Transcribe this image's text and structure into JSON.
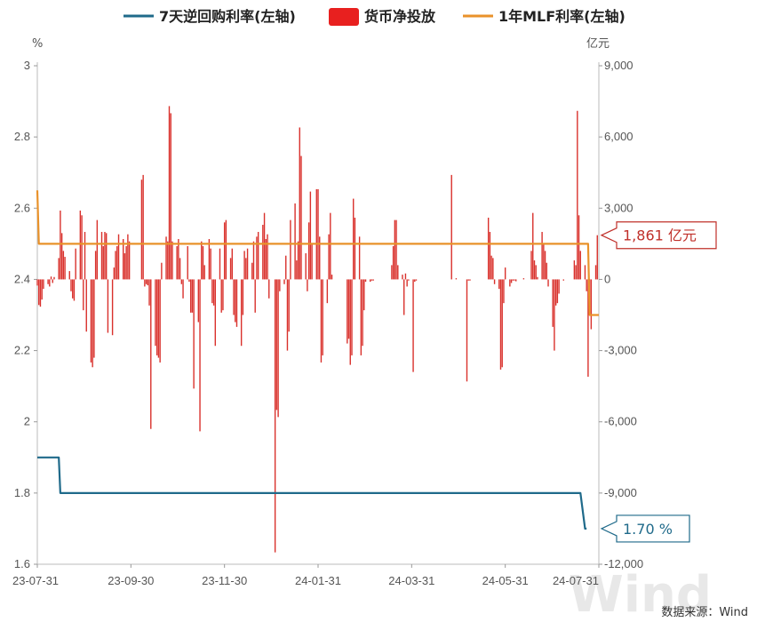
{
  "chart_data": {
    "type": "bar",
    "legend": {
      "placement": "top",
      "items": [
        {
          "label": "7天逆回购利率(左轴)",
          "color": "#1f6a8a",
          "symbol": "line"
        },
        {
          "label": "货币净投放",
          "color": "#e8201f",
          "symbol": "box"
        },
        {
          "label": "1年MLF利率(左轴)",
          "color": "#e9922a",
          "symbol": "line"
        }
      ]
    },
    "left_axis": {
      "unit": "%",
      "min": 1.6,
      "max": 3.0,
      "ticks": [
        "3",
        "2.8",
        "2.6",
        "2.4",
        "2.2",
        "2",
        "1.8",
        "1.6"
      ]
    },
    "right_axis": {
      "unit": "亿元",
      "min": -12000,
      "max": 9000,
      "ticks": [
        "9,000",
        "6,000",
        "3,000",
        "0",
        "-3,000",
        "-6,000",
        "-9,000",
        "-12,000"
      ]
    },
    "x_axis": {
      "min": "2023-07-31",
      "max": "2024-07-31",
      "ticks": [
        "23-07-31",
        "23-09-30",
        "23-11-30",
        "24-01-31",
        "24-03-31",
        "24-05-31",
        "24-07-31"
      ]
    },
    "series": [
      {
        "name": "7天逆回购利率(左轴)",
        "axis": "left",
        "color": "#1f6a8a",
        "points": [
          [
            "2023-07-31",
            1.9
          ],
          [
            "2023-08-14",
            1.9
          ],
          [
            "2023-08-15",
            1.8
          ],
          [
            "2024-07-19",
            1.8
          ],
          [
            "2024-07-22",
            1.7
          ],
          [
            "2024-07-23",
            1.7
          ]
        ]
      },
      {
        "name": "1年MLF利率(左轴)",
        "axis": "left",
        "color": "#e9922a",
        "points": [
          [
            "2023-07-31",
            2.65
          ],
          [
            "2023-08-01",
            2.5
          ],
          [
            "2024-07-24",
            2.5
          ],
          [
            "2024-07-25",
            2.3
          ],
          [
            "2024-07-31",
            2.3
          ]
        ]
      },
      {
        "name": "货币净投放",
        "axis": "right",
        "color": "#d9312c",
        "bars": [
          [
            "2023-07-31",
            -260
          ],
          [
            "2023-08-01",
            -1080
          ],
          [
            "2023-08-02",
            -1150
          ],
          [
            "2023-08-03",
            -850
          ],
          [
            "2023-08-04",
            -400
          ],
          [
            "2023-08-07",
            -200
          ],
          [
            "2023-08-08",
            -300
          ],
          [
            "2023-08-09",
            120
          ],
          [
            "2023-08-10",
            -150
          ],
          [
            "2023-08-11",
            100
          ],
          [
            "2023-08-14",
            900
          ],
          [
            "2023-08-15",
            2900
          ],
          [
            "2023-08-16",
            1950
          ],
          [
            "2023-08-17",
            1200
          ],
          [
            "2023-08-18",
            950
          ],
          [
            "2023-08-21",
            350
          ],
          [
            "2023-08-22",
            -500
          ],
          [
            "2023-08-23",
            -800
          ],
          [
            "2023-08-24",
            -900
          ],
          [
            "2023-08-25",
            1300
          ],
          [
            "2023-08-28",
            2900
          ],
          [
            "2023-08-29",
            2700
          ],
          [
            "2023-08-30",
            -1300
          ],
          [
            "2023-08-31",
            2000
          ],
          [
            "2023-09-01",
            -2200
          ],
          [
            "2023-09-04",
            -3500
          ],
          [
            "2023-09-05",
            -3700
          ],
          [
            "2023-09-06",
            -3300
          ],
          [
            "2023-09-07",
            1200
          ],
          [
            "2023-09-08",
            2500
          ],
          [
            "2023-09-11",
            2000
          ],
          [
            "2023-09-12",
            1400
          ],
          [
            "2023-09-13",
            2000
          ],
          [
            "2023-09-14",
            1950
          ],
          [
            "2023-09-15",
            -2250
          ],
          [
            "2023-09-18",
            -2350
          ],
          [
            "2023-09-19",
            500
          ],
          [
            "2023-09-20",
            1200
          ],
          [
            "2023-09-21",
            1400
          ],
          [
            "2023-09-22",
            1900
          ],
          [
            "2023-09-25",
            1700
          ],
          [
            "2023-09-26",
            1100
          ],
          [
            "2023-09-27",
            1400
          ],
          [
            "2023-09-28",
            1900
          ],
          [
            "2023-09-29",
            1600
          ],
          [
            "2023-10-07",
            4200
          ],
          [
            "2023-10-08",
            4400
          ],
          [
            "2023-10-09",
            -300
          ],
          [
            "2023-10-10",
            -200
          ],
          [
            "2023-10-11",
            -250
          ],
          [
            "2023-10-12",
            -1100
          ],
          [
            "2023-10-13",
            -6300
          ],
          [
            "2023-10-16",
            -2800
          ],
          [
            "2023-10-17",
            -3200
          ],
          [
            "2023-10-18",
            -3300
          ],
          [
            "2023-10-19",
            -3500
          ],
          [
            "2023-10-20",
            700
          ],
          [
            "2023-10-23",
            1800
          ],
          [
            "2023-10-24",
            1600
          ],
          [
            "2023-10-25",
            7300
          ],
          [
            "2023-10-26",
            7000
          ],
          [
            "2023-10-27",
            1600
          ],
          [
            "2023-10-30",
            1400
          ],
          [
            "2023-10-31",
            1700
          ],
          [
            "2023-11-01",
            900
          ],
          [
            "2023-11-02",
            -200
          ],
          [
            "2023-11-03",
            -800
          ],
          [
            "2023-11-06",
            1400
          ],
          [
            "2023-11-07",
            -100
          ],
          [
            "2023-11-08",
            -1400
          ],
          [
            "2023-11-09",
            -1400
          ],
          [
            "2023-11-10",
            -4600
          ],
          [
            "2023-11-13",
            -1800
          ],
          [
            "2023-11-14",
            -6400
          ],
          [
            "2023-11-15",
            1600
          ],
          [
            "2023-11-16",
            1400
          ],
          [
            "2023-11-17",
            600
          ],
          [
            "2023-11-20",
            1700
          ],
          [
            "2023-11-21",
            1300
          ],
          [
            "2023-11-22",
            -1000
          ],
          [
            "2023-11-23",
            -1100
          ],
          [
            "2023-11-24",
            -2800
          ],
          [
            "2023-11-27",
            1300
          ],
          [
            "2023-11-28",
            -1400
          ],
          [
            "2023-11-29",
            -1300
          ],
          [
            "2023-11-30",
            2400
          ],
          [
            "2023-12-01",
            2500
          ],
          [
            "2023-12-04",
            900
          ],
          [
            "2023-12-05",
            1300
          ],
          [
            "2023-12-06",
            -1500
          ],
          [
            "2023-12-07",
            -1800
          ],
          [
            "2023-12-08",
            -2000
          ],
          [
            "2023-12-11",
            -2800
          ],
          [
            "2023-12-12",
            -1500
          ],
          [
            "2023-12-13",
            1200
          ],
          [
            "2023-12-14",
            900
          ],
          [
            "2023-12-15",
            1300
          ],
          [
            "2023-12-18",
            700
          ],
          [
            "2023-12-19",
            1600
          ],
          [
            "2023-12-20",
            -1400
          ],
          [
            "2023-12-21",
            1800
          ],
          [
            "2023-12-22",
            2000
          ],
          [
            "2023-12-25",
            2300
          ],
          [
            "2023-12-26",
            2800
          ],
          [
            "2023-12-27",
            1700
          ],
          [
            "2023-12-28",
            1900
          ],
          [
            "2023-12-29",
            -800
          ],
          [
            "2024-01-02",
            -11500
          ],
          [
            "2024-01-03",
            -5500
          ],
          [
            "2024-01-04",
            -5800
          ],
          [
            "2024-01-05",
            -500
          ],
          [
            "2024-01-08",
            -200
          ],
          [
            "2024-01-09",
            1000
          ],
          [
            "2024-01-10",
            -3000
          ],
          [
            "2024-01-11",
            -2200
          ],
          [
            "2024-01-12",
            2500
          ],
          [
            "2024-01-15",
            3200
          ],
          [
            "2024-01-16",
            800
          ],
          [
            "2024-01-17",
            1600
          ],
          [
            "2024-01-18",
            6400
          ],
          [
            "2024-01-19",
            5200
          ],
          [
            "2024-01-22",
            1100
          ],
          [
            "2024-01-23",
            -500
          ],
          [
            "2024-01-24",
            2400
          ],
          [
            "2024-01-25",
            3700
          ],
          [
            "2024-01-26",
            1500
          ],
          [
            "2024-01-29",
            3800
          ],
          [
            "2024-01-30",
            3800
          ],
          [
            "2024-01-31",
            1800
          ],
          [
            "2024-02-01",
            -3500
          ],
          [
            "2024-02-02",
            -3200
          ],
          [
            "2024-02-05",
            -1000
          ],
          [
            "2024-02-06",
            1900
          ],
          [
            "2024-02-07",
            2800
          ],
          [
            "2024-02-08",
            200
          ],
          [
            "2024-02-18",
            -2700
          ],
          [
            "2024-02-19",
            -2500
          ],
          [
            "2024-02-20",
            -3600
          ],
          [
            "2024-02-21",
            -3200
          ],
          [
            "2024-02-22",
            3400
          ],
          [
            "2024-02-23",
            2600
          ],
          [
            "2024-02-26",
            1800
          ],
          [
            "2024-02-27",
            -3200
          ],
          [
            "2024-02-28",
            -2800
          ],
          [
            "2024-02-29",
            -1300
          ],
          [
            "2024-03-01",
            -100
          ],
          [
            "2024-03-04",
            -100
          ],
          [
            "2024-03-05",
            -50
          ],
          [
            "2024-03-06",
            -50
          ],
          [
            "2024-03-18",
            600
          ],
          [
            "2024-03-19",
            1400
          ],
          [
            "2024-03-20",
            2500
          ],
          [
            "2024-03-21",
            2500
          ],
          [
            "2024-03-22",
            600
          ],
          [
            "2024-03-25",
            200
          ],
          [
            "2024-03-26",
            -1500
          ],
          [
            "2024-03-27",
            250
          ],
          [
            "2024-03-28",
            -300
          ],
          [
            "2024-03-29",
            -50
          ],
          [
            "2024-04-01",
            -3900
          ],
          [
            "2024-04-02",
            -100
          ],
          [
            "2024-04-03",
            -50
          ],
          [
            "2024-04-26",
            4400
          ],
          [
            "2024-04-29",
            50
          ],
          [
            "2024-05-06",
            -4300
          ],
          [
            "2024-05-07",
            -50
          ],
          [
            "2024-05-08",
            -50
          ],
          [
            "2024-05-20",
            2600
          ],
          [
            "2024-05-21",
            2000
          ],
          [
            "2024-05-22",
            1000
          ],
          [
            "2024-05-23",
            900
          ],
          [
            "2024-05-24",
            -200
          ],
          [
            "2024-05-27",
            -400
          ],
          [
            "2024-05-28",
            -3800
          ],
          [
            "2024-05-29",
            -3700
          ],
          [
            "2024-05-30",
            -1000
          ],
          [
            "2024-05-31",
            500
          ],
          [
            "2024-06-03",
            -300
          ],
          [
            "2024-06-04",
            -150
          ],
          [
            "2024-06-05",
            -50
          ],
          [
            "2024-06-06",
            -50
          ],
          [
            "2024-06-07",
            -80
          ],
          [
            "2024-06-12",
            50
          ],
          [
            "2024-06-17",
            1200
          ],
          [
            "2024-06-18",
            2800
          ],
          [
            "2024-06-19",
            800
          ],
          [
            "2024-06-20",
            600
          ],
          [
            "2024-06-21",
            100
          ],
          [
            "2024-06-24",
            2000
          ],
          [
            "2024-06-25",
            1500
          ],
          [
            "2024-06-26",
            1200
          ],
          [
            "2024-06-27",
            700
          ],
          [
            "2024-06-28",
            -300
          ],
          [
            "2024-07-01",
            -2000
          ],
          [
            "2024-07-02",
            -3000
          ],
          [
            "2024-07-03",
            -1100
          ],
          [
            "2024-07-04",
            -1000
          ],
          [
            "2024-07-05",
            -600
          ],
          [
            "2024-07-08",
            -50
          ],
          [
            "2024-07-15",
            800
          ],
          [
            "2024-07-16",
            600
          ],
          [
            "2024-07-17",
            7100
          ],
          [
            "2024-07-18",
            2700
          ],
          [
            "2024-07-19",
            1200
          ],
          [
            "2024-07-22",
            600
          ],
          [
            "2024-07-23",
            -500
          ],
          [
            "2024-07-24",
            -4100
          ],
          [
            "2024-07-25",
            -1500
          ],
          [
            "2024-07-26",
            -2100
          ],
          [
            "2024-07-29",
            600
          ],
          [
            "2024-07-30",
            1861
          ]
        ]
      }
    ],
    "callouts": [
      {
        "label": "1,861 亿元",
        "series": "货币净投放",
        "axis": "right",
        "value": 1861,
        "color": "#c0302a"
      },
      {
        "label": "1.70 %",
        "series": "7天逆回购利率(左轴)",
        "axis": "left",
        "value": 1.7,
        "color": "#1f6a8a"
      }
    ],
    "grid": false,
    "source": "数据来源：Wind",
    "watermark": "Wind"
  }
}
